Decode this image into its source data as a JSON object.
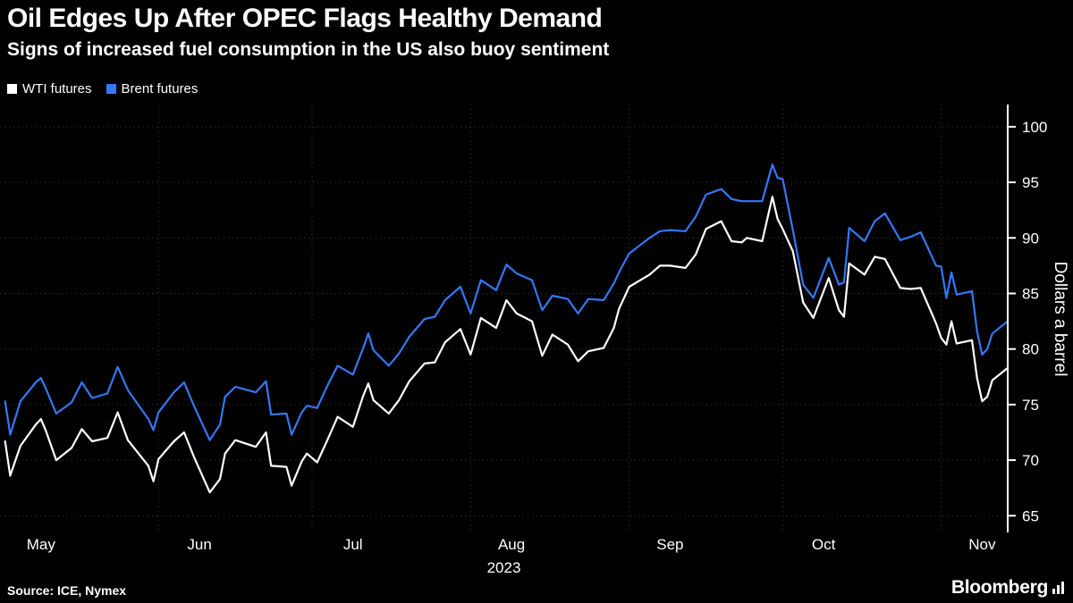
{
  "header": {
    "title": "Oil Edges Up After OPEC Flags Healthy Demand",
    "subtitle": "Signs of increased fuel consumption in the US also buoy sentiment"
  },
  "legend": [
    {
      "label": "WTI futures",
      "color": "#ffffff"
    },
    {
      "label": "Brent futures",
      "color": "#3478f6"
    }
  ],
  "footer": {
    "source": "Source: ICE, Nymex",
    "brand": "Bloomberg"
  },
  "colors": {
    "background": "#000000",
    "text": "#ffffff",
    "grid": "#3d3d3d",
    "axis": "#ffffff",
    "accent_blue": "#3478f6"
  },
  "chart_data": {
    "type": "line",
    "title": "Oil Edges Up After OPEC Flags Healthy Demand",
    "subtitle": "Signs of increased fuel consumption in the US also buoy sentiment",
    "xlabel": "",
    "ylabel": "Dollars a barrel",
    "year_label": "2023",
    "grid": true,
    "legend_position": "top-left",
    "ylim": [
      63.5,
      102
    ],
    "yticks": [
      65,
      70,
      75,
      80,
      85,
      90,
      95,
      100
    ],
    "x_unit": "days since 2023-05-01",
    "xlim": [
      0,
      197
    ],
    "month_ticks": [
      {
        "label": "May",
        "day": 0
      },
      {
        "label": "Jun",
        "day": 31
      },
      {
        "label": "Jul",
        "day": 61
      },
      {
        "label": "Aug",
        "day": 92
      },
      {
        "label": "Sep",
        "day": 123
      },
      {
        "label": "Oct",
        "day": 153
      },
      {
        "label": "Nov",
        "day": 184
      }
    ],
    "x": [
      1,
      2,
      4,
      7,
      8,
      9,
      11,
      14,
      16,
      18,
      21,
      23,
      25,
      29,
      30,
      31,
      34,
      36,
      38,
      41,
      43,
      44,
      46,
      50,
      52,
      53,
      56,
      57,
      59,
      60,
      62,
      64,
      66,
      69,
      71,
      72,
      73,
      76,
      78,
      80,
      83,
      85,
      87,
      90,
      92,
      94,
      97,
      99,
      101,
      104,
      106,
      108,
      111,
      113,
      115,
      118,
      120,
      121,
      123,
      127,
      129,
      131,
      134,
      136,
      138,
      141,
      143,
      145,
      146,
      149,
      151,
      152,
      153,
      155,
      157,
      159,
      162,
      164,
      165,
      166,
      169,
      171,
      173,
      176,
      178,
      180,
      183,
      184,
      185,
      186,
      187,
      190,
      191,
      192,
      193,
      194,
      197
    ],
    "series": [
      {
        "name": "WTI futures",
        "color": "#ffffff",
        "values": [
          71.7,
          68.6,
          71.3,
          73.2,
          73.7,
          72.6,
          70.0,
          71.1,
          72.8,
          71.7,
          72.0,
          74.3,
          71.8,
          69.5,
          68.1,
          70.1,
          71.7,
          72.5,
          70.2,
          67.1,
          68.3,
          70.6,
          71.8,
          71.2,
          72.5,
          69.5,
          69.4,
          67.7,
          69.9,
          70.6,
          69.8,
          71.8,
          73.9,
          73.0,
          75.8,
          76.9,
          75.4,
          74.2,
          75.4,
          77.1,
          78.7,
          78.8,
          80.6,
          81.8,
          79.5,
          82.8,
          81.9,
          84.4,
          83.2,
          82.5,
          79.4,
          81.3,
          80.4,
          78.9,
          79.8,
          80.1,
          81.9,
          83.6,
          85.6,
          86.7,
          87.5,
          87.5,
          87.3,
          88.5,
          90.8,
          91.5,
          89.7,
          89.6,
          90.0,
          89.7,
          93.7,
          91.7,
          90.8,
          88.8,
          84.2,
          82.8,
          86.4,
          83.5,
          82.9,
          87.7,
          86.7,
          88.3,
          88.1,
          85.5,
          85.4,
          85.5,
          82.3,
          81.0,
          80.4,
          82.5,
          80.5,
          80.8,
          77.4,
          75.3,
          75.7,
          77.2,
          78.3
        ]
      },
      {
        "name": "Brent futures",
        "color": "#3478f6",
        "values": [
          75.3,
          72.3,
          75.3,
          77.0,
          77.4,
          76.4,
          74.2,
          75.2,
          77.0,
          75.6,
          76.0,
          78.4,
          76.3,
          73.7,
          72.7,
          74.3,
          76.1,
          77.0,
          74.8,
          71.8,
          73.2,
          75.7,
          76.6,
          76.1,
          77.1,
          74.1,
          74.2,
          72.3,
          74.3,
          74.9,
          74.7,
          76.7,
          78.5,
          77.7,
          80.1,
          81.4,
          79.9,
          78.5,
          79.6,
          81.1,
          82.7,
          82.9,
          84.4,
          85.6,
          83.2,
          86.2,
          85.3,
          87.6,
          86.8,
          86.2,
          83.5,
          84.8,
          84.5,
          83.2,
          84.5,
          84.4,
          85.9,
          86.9,
          88.6,
          90.0,
          90.6,
          90.7,
          90.6,
          91.9,
          93.9,
          94.4,
          93.5,
          93.3,
          93.3,
          93.3,
          96.6,
          95.4,
          95.3,
          90.7,
          85.8,
          84.6,
          88.2,
          85.8,
          86.0,
          90.9,
          89.7,
          91.5,
          92.2,
          89.8,
          90.1,
          90.5,
          87.5,
          87.4,
          84.6,
          86.9,
          84.9,
          85.2,
          81.6,
          79.5,
          80.0,
          81.4,
          82.5
        ]
      }
    ]
  }
}
